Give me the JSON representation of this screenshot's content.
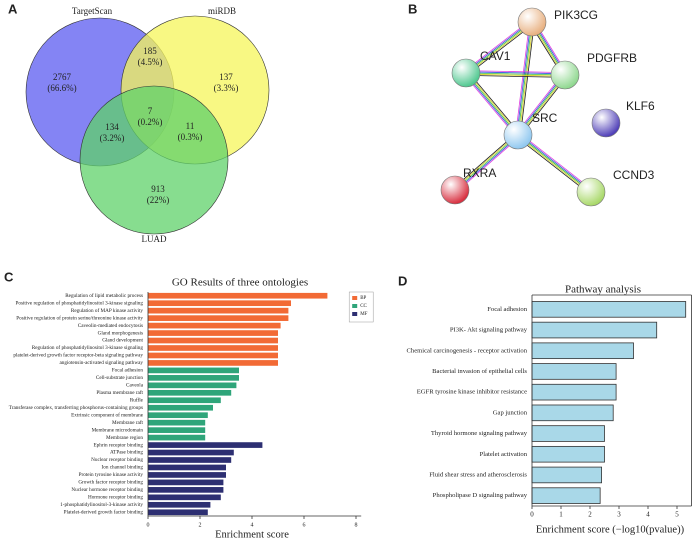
{
  "panel_labels": [
    "A",
    "B",
    "C",
    "D"
  ],
  "chart_data": [
    {
      "type": "venn",
      "sets": [
        {
          "name": "TargetScan",
          "color": "#5b5bf0"
        },
        {
          "name": "miRDB",
          "color": "#f6f65a"
        },
        {
          "name": "LUAD",
          "color": "#5fd26a"
        }
      ],
      "values": [
        2767,
        185,
        137,
        7,
        134,
        11,
        913
      ],
      "percent_labels": [
        "(66.6%)",
        "(4.5%)",
        "(3.3%)",
        "(0.2%)",
        "(3.2%)",
        "(0.3%)",
        "(22%)"
      ]
    },
    {
      "type": "network",
      "nodes": [
        {
          "label": "PIK3CG",
          "color": "#e8b080"
        },
        {
          "label": "CAV1",
          "color": "#50c890"
        },
        {
          "label": "PDGFRB",
          "color": "#90d890"
        },
        {
          "label": "SRC",
          "color": "#90c8f0"
        },
        {
          "label": "KLF6",
          "color": "#5040b8"
        },
        {
          "label": "RXRA",
          "color": "#d83040"
        },
        {
          "label": "CCND3",
          "color": "#a8d868"
        }
      ]
    },
    {
      "type": "bar",
      "orientation": "horizontal",
      "title": "GO Results of three ontologies",
      "x_label": "Enrichment score",
      "categories": [
        "Regulation of lipid metabolic process",
        "Positive regulation of phosphatidylinositol 3-kinase signaling",
        "Regulation of MAP kinase activity",
        "Positive regulation of protein serine/threonine kinase activity",
        "Caveolin-mediated endocytosis",
        "Gland morphogenesis",
        "Gland development",
        "Regulation of phosphatidylinositol 3-kinase signaling",
        "platelet-derived growth factor receptor-beta signaling pathway",
        "angiotensin-activated signaling pathway",
        "Focal adhesion",
        "Cell-substrate junction",
        "Caveola",
        "Plasma membrane raft",
        "Ruffle",
        "Transferase complex, transferring phosphorus-containing groups",
        "Extrinsic component of membrane",
        "Membrane raft",
        "Membrane microdomain",
        "Membrane region",
        "Ephrin receptor binding",
        "ATPase binding",
        "Nuclear receptor binding",
        "Ion channel binding",
        "Protein tyrosine kinase activity",
        "Growth factor receptor binding",
        "Nuclear hormone receptor binding",
        "Hormone receptor binding",
        "1-phosphatidylinositol-3-kinase activity",
        "Platelet-derived growth factor binding"
      ],
      "series": [
        {
          "name": "BP",
          "color": "#f26a35",
          "values": [
            6.9,
            5.5,
            5.4,
            5.4,
            5.1,
            5.0,
            5.0,
            5.0,
            5.0,
            5.0,
            null,
            null,
            null,
            null,
            null,
            null,
            null,
            null,
            null,
            null,
            null,
            null,
            null,
            null,
            null,
            null,
            null,
            null,
            null,
            null
          ]
        },
        {
          "name": "CC",
          "color": "#2fa57a",
          "values": [
            null,
            null,
            null,
            null,
            null,
            null,
            null,
            null,
            null,
            null,
            3.5,
            3.5,
            3.4,
            3.2,
            2.8,
            2.5,
            2.3,
            2.2,
            2.2,
            2.2,
            null,
            null,
            null,
            null,
            null,
            null,
            null,
            null,
            null,
            null
          ]
        },
        {
          "name": "MF",
          "color": "#2d2f72",
          "values": [
            null,
            null,
            null,
            null,
            null,
            null,
            null,
            null,
            null,
            null,
            null,
            null,
            null,
            null,
            null,
            null,
            null,
            null,
            null,
            null,
            4.4,
            3.3,
            3.2,
            3.0,
            3.0,
            2.9,
            2.9,
            2.8,
            2.4,
            2.3
          ]
        }
      ],
      "xlim": [
        0,
        8.2
      ],
      "xticks": [
        0,
        2,
        4,
        6,
        8
      ],
      "legend": "upper right"
    },
    {
      "type": "bar",
      "orientation": "horizontal",
      "title": "Pathway analysis",
      "x_label": "Enrichment score (−log10(pvalue))",
      "categories": [
        "Focal adhesion",
        "PI3K- Akt signaling pathway",
        "Chemical carcinogenesis - receptor activation",
        "Bacterial invasion of epithelial cells",
        "EGFR tyrosine kinase inhibitor resistance",
        "Gap junction",
        "Thyroid hormone signaling pathway",
        "Platelet activation",
        "Fluid shear stress and atherosclerosis",
        "Phospholipase D signaling pathway"
      ],
      "series": [
        {
          "name": "Pathway",
          "color": "#a9d8e8",
          "values": [
            5.3,
            4.3,
            3.5,
            2.9,
            2.9,
            2.8,
            2.5,
            2.5,
            2.4,
            2.35
          ]
        }
      ],
      "xlim": [
        0,
        5.5
      ],
      "xticks": [
        0,
        1,
        2,
        3,
        4,
        5
      ]
    }
  ]
}
